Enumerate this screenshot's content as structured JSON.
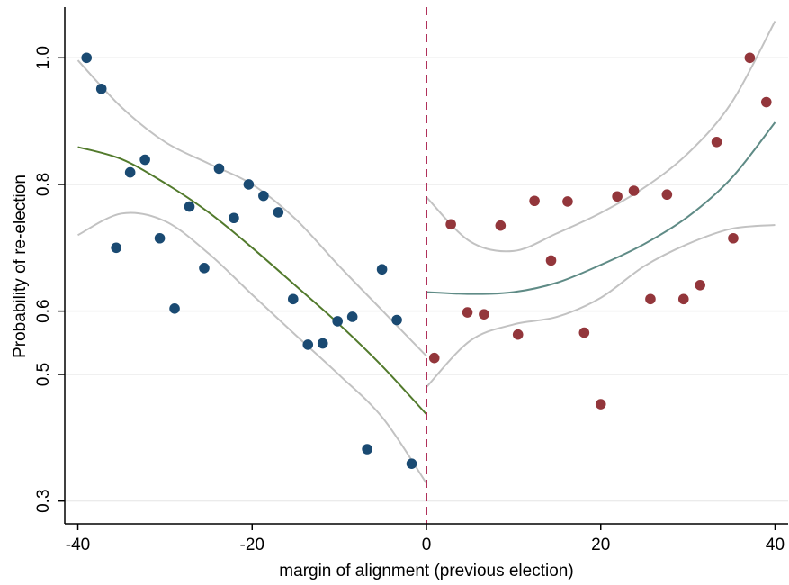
{
  "chart_data": {
    "type": "scatter",
    "title": "",
    "xlabel": "margin of alignment (previous election)",
    "ylabel": "Probability of re-election",
    "xlim": [
      -41.5,
      41.5
    ],
    "ylim": [
      0.264,
      1.08
    ],
    "x_ticks": [
      {
        "value": -40,
        "label": "-40"
      },
      {
        "value": -20,
        "label": "-20"
      },
      {
        "value": 0,
        "label": "0"
      },
      {
        "value": 20,
        "label": "20"
      },
      {
        "value": 40,
        "label": "40"
      }
    ],
    "y_ticks": [
      {
        "value": 0.3,
        "label": "0.3"
      },
      {
        "value": 0.5,
        "label": "0.5"
      },
      {
        "value": 0.6,
        "label": "0.6"
      },
      {
        "value": 0.8,
        "label": "0.8"
      },
      {
        "value": 1.0,
        "label": "1.0"
      }
    ],
    "grid": "horizontal",
    "cutoff": {
      "x": 0,
      "color": "#b0305a",
      "style": "dashed"
    },
    "colors": {
      "left_points": "#1a4a72",
      "right_points": "#93363b",
      "left_fit": "#527a2c",
      "right_fit": "#5f8b86",
      "ci": "#c2c2c2",
      "grid": "#ebebeb"
    },
    "series": [
      {
        "side": "left",
        "points": [
          [
            -39.0,
            1.0
          ],
          [
            -37.3,
            0.951
          ],
          [
            -35.6,
            0.7
          ],
          [
            -34.0,
            0.819
          ],
          [
            -32.3,
            0.839
          ],
          [
            -30.6,
            0.715
          ],
          [
            -28.9,
            0.604
          ],
          [
            -27.2,
            0.765
          ],
          [
            -25.5,
            0.668
          ],
          [
            -23.8,
            0.825
          ],
          [
            -22.1,
            0.747
          ],
          [
            -20.4,
            0.8
          ],
          [
            -18.7,
            0.782
          ],
          [
            -17.0,
            0.756
          ],
          [
            -15.3,
            0.619
          ],
          [
            -13.6,
            0.547
          ],
          [
            -11.9,
            0.549
          ],
          [
            -10.2,
            0.584
          ],
          [
            -8.5,
            0.591
          ],
          [
            -6.8,
            0.382
          ],
          [
            -5.1,
            0.666
          ],
          [
            -3.4,
            0.586
          ],
          [
            -1.7,
            0.359
          ]
        ]
      },
      {
        "side": "right",
        "points": [
          [
            0.9,
            0.526
          ],
          [
            2.8,
            0.737
          ],
          [
            4.7,
            0.598
          ],
          [
            6.6,
            0.595
          ],
          [
            8.5,
            0.735
          ],
          [
            10.5,
            0.563
          ],
          [
            12.4,
            0.774
          ],
          [
            14.3,
            0.68
          ],
          [
            16.2,
            0.773
          ],
          [
            18.1,
            0.566
          ],
          [
            20.0,
            0.453
          ],
          [
            21.9,
            0.781
          ],
          [
            23.8,
            0.79
          ],
          [
            25.7,
            0.619
          ],
          [
            27.6,
            0.784
          ],
          [
            29.5,
            0.619
          ],
          [
            31.4,
            0.641
          ],
          [
            33.3,
            0.867
          ],
          [
            35.2,
            0.715
          ],
          [
            37.1,
            1.0
          ],
          [
            39.0,
            0.93
          ]
        ]
      }
    ],
    "fits": [
      {
        "side": "left",
        "fit": [
          [
            -40,
            0.859
          ],
          [
            -35,
            0.84
          ],
          [
            -30,
            0.802
          ],
          [
            -25,
            0.756
          ],
          [
            -20,
            0.7
          ],
          [
            -15,
            0.64
          ],
          [
            -10,
            0.579
          ],
          [
            -5,
            0.512
          ],
          [
            0,
            0.437
          ]
        ],
        "ci_upper": [
          [
            -40,
            0.996
          ],
          [
            -35,
            0.922
          ],
          [
            -30,
            0.867
          ],
          [
            -25,
            0.833
          ],
          [
            -20,
            0.8
          ],
          [
            -15,
            0.745
          ],
          [
            -10,
            0.671
          ],
          [
            -5,
            0.6
          ],
          [
            0,
            0.529
          ]
        ],
        "ci_lower": [
          [
            -40,
            0.72
          ],
          [
            -35,
            0.754
          ],
          [
            -30,
            0.742
          ],
          [
            -25,
            0.691
          ],
          [
            -20,
            0.626
          ],
          [
            -15,
            0.562
          ],
          [
            -10,
            0.499
          ],
          [
            -5,
            0.431
          ],
          [
            0,
            0.328
          ]
        ]
      },
      {
        "side": "right",
        "fit": [
          [
            0,
            0.63
          ],
          [
            5,
            0.627
          ],
          [
            10,
            0.63
          ],
          [
            15,
            0.645
          ],
          [
            20,
            0.673
          ],
          [
            25,
            0.706
          ],
          [
            30,
            0.749
          ],
          [
            35,
            0.81
          ],
          [
            40,
            0.898
          ]
        ],
        "ci_upper": [
          [
            0,
            0.78
          ],
          [
            5,
            0.71
          ],
          [
            10,
            0.695
          ],
          [
            15,
            0.723
          ],
          [
            20,
            0.755
          ],
          [
            25,
            0.795
          ],
          [
            30,
            0.849
          ],
          [
            35,
            0.929
          ],
          [
            40,
            1.058
          ]
        ],
        "ci_lower": [
          [
            0,
            0.48
          ],
          [
            5,
            0.553
          ],
          [
            10,
            0.579
          ],
          [
            15,
            0.591
          ],
          [
            20,
            0.621
          ],
          [
            25,
            0.671
          ],
          [
            30,
            0.706
          ],
          [
            35,
            0.73
          ],
          [
            40,
            0.736
          ]
        ]
      }
    ]
  }
}
